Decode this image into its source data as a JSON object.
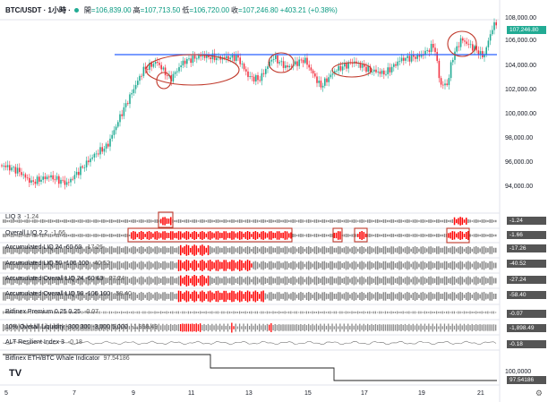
{
  "header": {
    "symbol": "BTC/USDT · 1小時 ·",
    "open_label": "開",
    "open": "=106,839.00",
    "high_label": "高",
    "high": "=107,713.50",
    "low_label": "低",
    "low": "=106,720.00",
    "close_label": "收",
    "close": "=107,246.80",
    "change": "+403.21 (+0.38%)"
  },
  "price_axis": {
    "ticks": [
      "108,000.00",
      "106,000.00",
      "104,000.00",
      "102,000.00",
      "100,000.00",
      "98,000.00",
      "96,000.00",
      "94,000.00"
    ],
    "last_price": "107,246.80"
  },
  "panes": [
    {
      "label": "LIQ",
      "params": "3",
      "value": "-1.24",
      "badge": "-1.24"
    },
    {
      "label": "Overall LIQ",
      "params": "2.2",
      "value": "-1.66",
      "badge": "-1.66"
    },
    {
      "label": "Accumulated LIQ 24 -60 60",
      "params": "",
      "value": "-17.26",
      "badge": "-17.26"
    },
    {
      "label": "Accumulated LIQ 50 -100 100",
      "params": "",
      "value": "-40.52",
      "badge": "-40.52"
    },
    {
      "label": "Accumulated Overall LIQ 24 -60 60",
      "params": "",
      "value": "-27.24",
      "badge": "-27.24"
    },
    {
      "label": "Accumulated Overall LIQ 50 -100 100",
      "params": "",
      "value": "-58.40",
      "badge": "-58.40"
    },
    {
      "label": "Bitfinex Premium",
      "params": "0.25 0.25",
      "value": "-0.07",
      "badge": "-0.07"
    },
    {
      "label": "10% Overall Liquidity",
      "params": "-300 300 -3,000 5,000",
      "value": "-1,898.49",
      "badge": "-1,898.49"
    },
    {
      "label": "ALT Resilient Index",
      "params": "3",
      "value": "-0.18",
      "badge": "-0.18"
    },
    {
      "label": "Bitfinex ETH/BTC Whale Indicator",
      "params": "",
      "value": "97.54186",
      "badge": "97.54186"
    }
  ],
  "whale_axis": {
    "tick": "100,0000"
  },
  "x_axis": {
    "ticks": [
      "5",
      "7",
      "9",
      "11",
      "13",
      "15",
      "17",
      "19",
      "21"
    ]
  },
  "colors": {
    "up": "#22ab94",
    "down": "#f23645",
    "liq_bar": "#ff0000",
    "neutral_bar": "#888888",
    "level_line": "#2962ff",
    "annotation": "#c0392b"
  },
  "icons": {
    "settings": "gear-icon"
  }
}
